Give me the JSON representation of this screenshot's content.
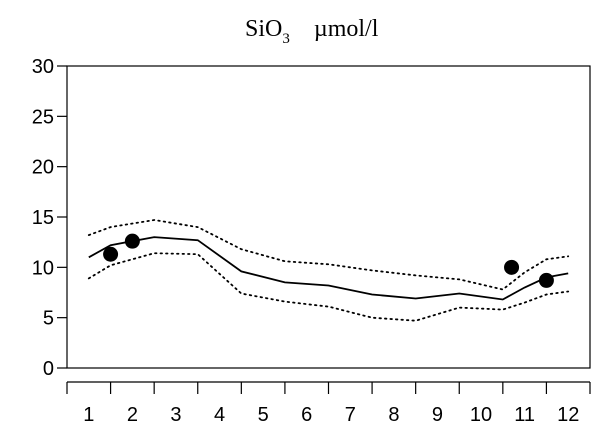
{
  "chart_data": {
    "type": "line",
    "title": {
      "species": "SiO",
      "subscript": "3",
      "unit": "µmol/l"
    },
    "xlabel": "",
    "ylabel": "",
    "xlim": [
      0.5,
      12.5
    ],
    "ylim": [
      0,
      30
    ],
    "x_ticks": [
      1,
      2,
      3,
      4,
      5,
      6,
      7,
      8,
      9,
      10,
      11,
      12
    ],
    "y_ticks": [
      0,
      5,
      10,
      15,
      20,
      25,
      30
    ],
    "grid": false,
    "legend": "none",
    "series": [
      {
        "style": "solid",
        "x": [
          1.0,
          1.5,
          2.5,
          3.5,
          4.5,
          5.5,
          6.5,
          7.5,
          8.5,
          9.5,
          10.5,
          11.0,
          11.5,
          12.0
        ],
        "y": [
          11.0,
          12.2,
          13.0,
          12.7,
          9.6,
          8.5,
          8.2,
          7.3,
          6.9,
          7.4,
          6.8,
          8.0,
          9.0,
          9.4
        ]
      },
      {
        "style": "dotted",
        "x": [
          1.0,
          1.5,
          2.5,
          3.5,
          4.5,
          5.5,
          6.5,
          7.5,
          8.5,
          9.5,
          10.5,
          11.0,
          11.5,
          12.0
        ],
        "y": [
          13.2,
          14.0,
          14.7,
          14.0,
          11.8,
          10.6,
          10.3,
          9.7,
          9.2,
          8.8,
          7.8,
          9.5,
          10.8,
          11.1
        ]
      },
      {
        "style": "dotted",
        "x": [
          1.0,
          1.5,
          2.5,
          3.5,
          4.5,
          5.5,
          6.5,
          7.5,
          8.5,
          9.5,
          10.5,
          11.0,
          11.5,
          12.0
        ],
        "y": [
          8.9,
          10.2,
          11.4,
          11.3,
          7.4,
          6.6,
          6.1,
          5.0,
          4.7,
          6.0,
          5.8,
          6.5,
          7.3,
          7.6
        ]
      }
    ],
    "points": {
      "x": [
        1.5,
        2.0,
        10.7,
        11.5
      ],
      "y": [
        11.3,
        12.6,
        10.0,
        8.7
      ]
    }
  }
}
